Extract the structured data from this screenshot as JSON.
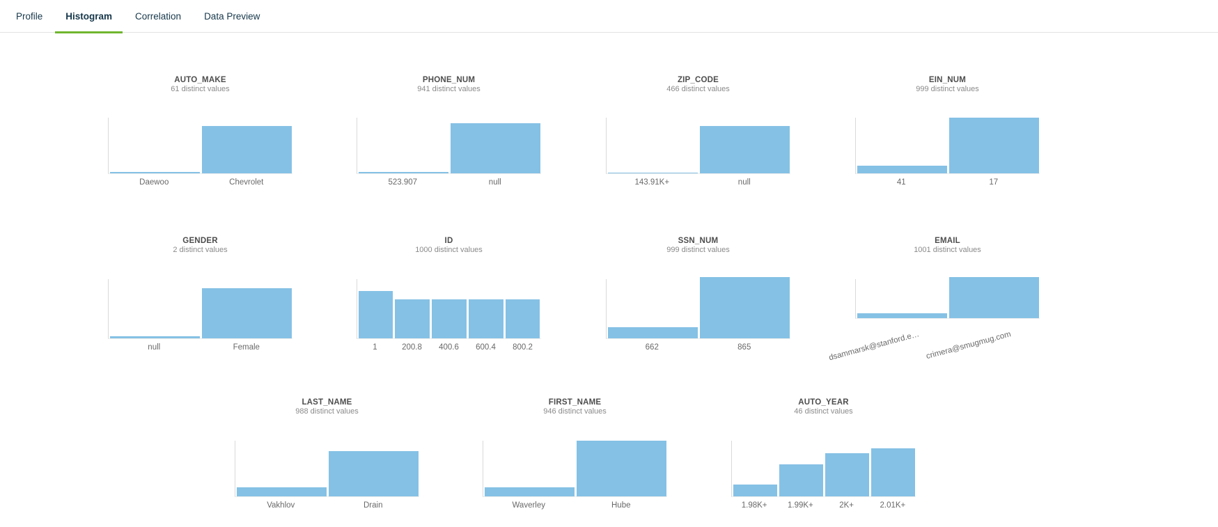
{
  "tabs": [
    {
      "label": "Profile",
      "active": false
    },
    {
      "label": "Histogram",
      "active": true
    },
    {
      "label": "Correlation",
      "active": false
    },
    {
      "label": "Data Preview",
      "active": false
    }
  ],
  "colors": {
    "accent_green": "#6fb52e",
    "bar_blue": "#85c1e5",
    "tab_text": "#16374a"
  },
  "chart_data": [
    {
      "type": "bar",
      "title": "AUTO_MAKE",
      "subtitle": "61 distinct values",
      "categories": [
        "Daewoo",
        "Chevrolet"
      ],
      "heights_pct": [
        3,
        85
      ]
    },
    {
      "type": "bar",
      "title": "PHONE_NUM",
      "subtitle": "941 distinct values",
      "categories": [
        "523.907",
        "null"
      ],
      "heights_pct": [
        3,
        90
      ]
    },
    {
      "type": "bar",
      "title": "ZIP_CODE",
      "subtitle": "466 distinct values",
      "categories": [
        "143.91K+",
        "null"
      ],
      "heights_pct": [
        1,
        85
      ]
    },
    {
      "type": "bar",
      "title": "EIN_NUM",
      "subtitle": "999 distinct values",
      "categories": [
        "41",
        "17"
      ],
      "heights_pct": [
        14,
        100
      ]
    },
    {
      "type": "bar",
      "title": "GENDER",
      "subtitle": "2 distinct values",
      "categories": [
        "null",
        "Female"
      ],
      "heights_pct": [
        3,
        85
      ]
    },
    {
      "type": "bar",
      "title": "ID",
      "subtitle": "1000 distinct values",
      "categories": [
        "1",
        "200.8",
        "400.6",
        "600.4",
        "800.2"
      ],
      "heights_pct": [
        80,
        66,
        66,
        66,
        66
      ]
    },
    {
      "type": "bar",
      "title": "SSN_NUM",
      "subtitle": "999 distinct values",
      "categories": [
        "662",
        "865"
      ],
      "heights_pct": [
        19,
        103
      ]
    },
    {
      "type": "bar",
      "title": "EMAIL",
      "subtitle": "1001 distinct values",
      "categories": [
        "dsammarsk@stanford.e…",
        "crimera@smugmug.com"
      ],
      "heights_pct": [
        13,
        105
      ],
      "rotated_labels": true
    },
    {
      "type": "bar",
      "title": "LAST_NAME",
      "subtitle": "988 distinct values",
      "categories": [
        "Vakhlov",
        "Drain"
      ],
      "heights_pct": [
        16,
        81
      ]
    },
    {
      "type": "bar",
      "title": "FIRST_NAME",
      "subtitle": "946 distinct values",
      "categories": [
        "Waverley",
        "Hube"
      ],
      "heights_pct": [
        16,
        100
      ]
    },
    {
      "type": "bar",
      "title": "AUTO_YEAR",
      "subtitle": "46 distinct values",
      "categories": [
        "1.98K+",
        "1.99K+",
        "2K+",
        "2.01K+"
      ],
      "heights_pct": [
        21,
        57,
        78,
        86
      ]
    }
  ]
}
